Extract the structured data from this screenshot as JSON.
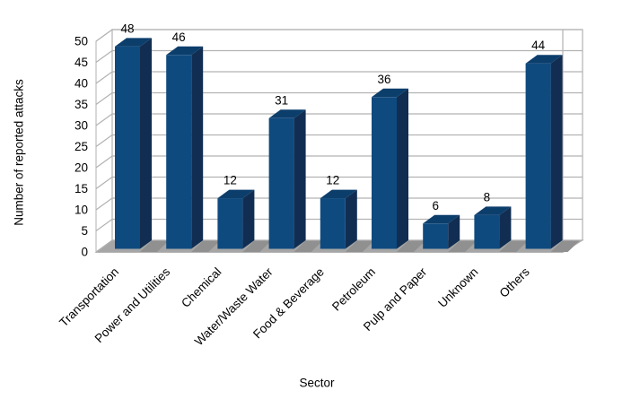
{
  "chart_data": {
    "type": "bar",
    "style": "3d-bar",
    "title": "",
    "xlabel": "Sector",
    "ylabel": "Number of reported attacks",
    "categories": [
      "Transportation",
      "Power and Utilities",
      "Chemical",
      "Water/Waste Water",
      "Food & Beverage",
      "Petroleum",
      "Pulp and Paper",
      "Unknown",
      "Others"
    ],
    "values": [
      48,
      46,
      12,
      31,
      12,
      36,
      6,
      8,
      44
    ],
    "data_labels_shown": true,
    "ylim": [
      0,
      50
    ],
    "ytick_step": 5,
    "grid": true,
    "legend_position": "none",
    "colors": {
      "bar_front": "#0F4A7F",
      "bar_top": "#0C3E6C",
      "bar_side": "#112E52",
      "wall": "#FFFFFF",
      "gridline": "#B2B2B2",
      "floor": "#A6A6A6",
      "floor_shadow": "#909090",
      "text": "#000000"
    }
  }
}
